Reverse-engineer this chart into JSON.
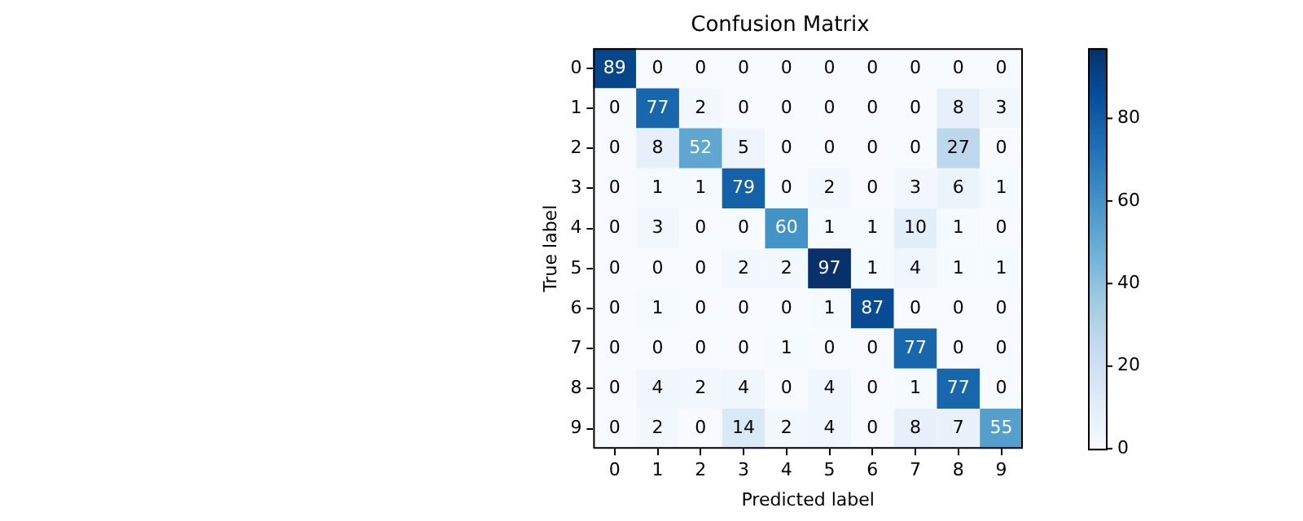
{
  "chart_data": {
    "type": "heatmap",
    "title": "Confusion Matrix",
    "xlabel": "Predicted label",
    "ylabel": "True label",
    "categories": [
      "0",
      "1",
      "2",
      "3",
      "4",
      "5",
      "6",
      "7",
      "8",
      "9"
    ],
    "y_categories": [
      "0",
      "1",
      "2",
      "3",
      "4",
      "5",
      "6",
      "7",
      "8",
      "9"
    ],
    "cells": [
      [
        89,
        0,
        0,
        0,
        0,
        0,
        0,
        0,
        0,
        0
      ],
      [
        0,
        77,
        2,
        0,
        0,
        0,
        0,
        0,
        8,
        3
      ],
      [
        0,
        8,
        52,
        5,
        0,
        0,
        0,
        0,
        27,
        0
      ],
      [
        0,
        1,
        1,
        79,
        0,
        2,
        0,
        3,
        6,
        1
      ],
      [
        0,
        3,
        0,
        0,
        60,
        1,
        1,
        10,
        1,
        0
      ],
      [
        0,
        0,
        0,
        2,
        2,
        97,
        1,
        4,
        1,
        1
      ],
      [
        0,
        1,
        0,
        0,
        0,
        1,
        87,
        0,
        0,
        0
      ],
      [
        0,
        0,
        0,
        0,
        1,
        0,
        0,
        77,
        0,
        0
      ],
      [
        0,
        4,
        2,
        4,
        0,
        4,
        0,
        1,
        77,
        0
      ],
      [
        0,
        2,
        0,
        14,
        2,
        4,
        0,
        8,
        7,
        55
      ]
    ],
    "clim": [
      0,
      97
    ],
    "cticks": [
      0,
      20,
      40,
      60,
      80
    ],
    "data_labels": true
  }
}
